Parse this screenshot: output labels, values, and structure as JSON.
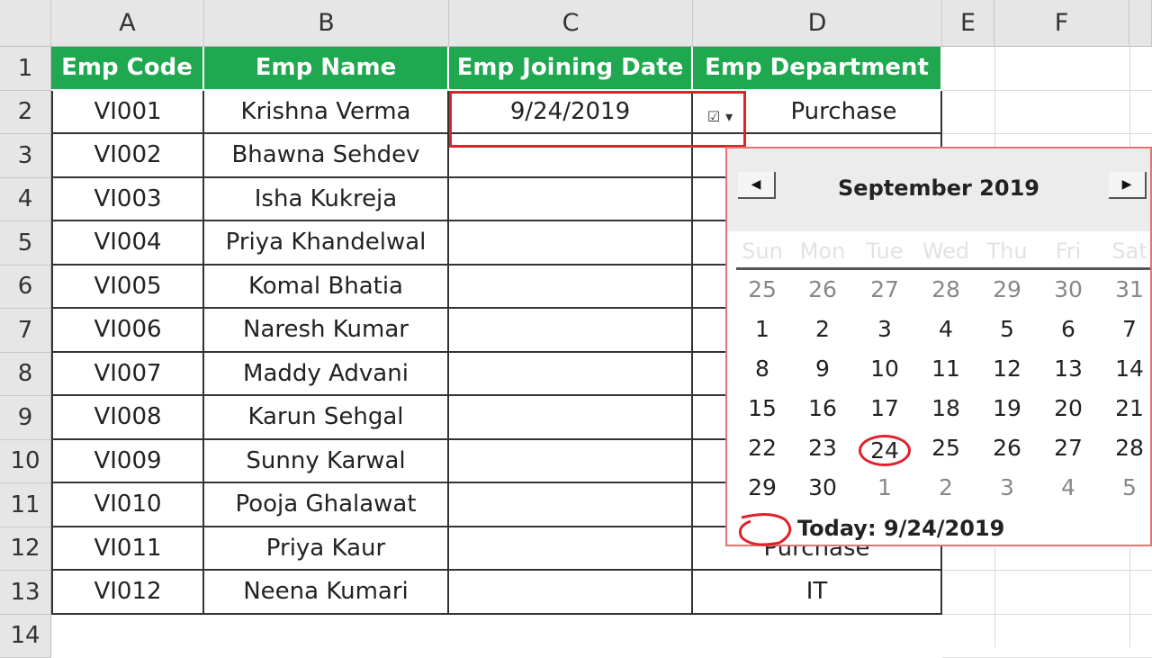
{
  "columns": [
    "A",
    "B",
    "C",
    "D",
    "E",
    "F"
  ],
  "rows": [
    "1",
    "2",
    "3",
    "4",
    "5",
    "6",
    "7",
    "8",
    "9",
    "10",
    "11",
    "12",
    "13",
    "14"
  ],
  "headers": [
    "Emp Code",
    "Emp Name",
    "Emp Joining Date",
    "Emp Department"
  ],
  "header_color": "#1fa84f",
  "employees": [
    {
      "code": "VI001",
      "name": "Krishna Verma",
      "date": "9/24/2019",
      "dept": "Purchase"
    },
    {
      "code": "VI002",
      "name": "Bhawna Sehdev",
      "date": "",
      "dept": ""
    },
    {
      "code": "VI003",
      "name": "Isha Kukreja",
      "date": "",
      "dept": ""
    },
    {
      "code": "VI004",
      "name": "Priya Khandelwal",
      "date": "",
      "dept": ""
    },
    {
      "code": "VI005",
      "name": "Komal Bhatia",
      "date": "",
      "dept": ""
    },
    {
      "code": "VI006",
      "name": "Naresh Kumar",
      "date": "",
      "dept": ""
    },
    {
      "code": "VI007",
      "name": "Maddy Advani",
      "date": "",
      "dept": ""
    },
    {
      "code": "VI008",
      "name": "Karun Sehgal",
      "date": "",
      "dept": ""
    },
    {
      "code": "VI009",
      "name": "Sunny Karwal",
      "date": "",
      "dept": ""
    },
    {
      "code": "VI010",
      "name": "Pooja Ghalawat",
      "date": "",
      "dept": ""
    },
    {
      "code": "VI011",
      "name": "Priya Kaur",
      "date": "",
      "dept": "Purchase"
    },
    {
      "code": "VI012",
      "name": "Neena Kumari",
      "date": "",
      "dept": "IT"
    }
  ],
  "calendar": {
    "month": "September 2019",
    "prev_icon": "triangle-left",
    "next_icon": "triangle-right",
    "day_names": [
      "Sun",
      "Mon",
      "Tue",
      "Wed",
      "Thu",
      "Fri",
      "Sat"
    ],
    "weeks": [
      [
        "25",
        "26",
        "27",
        "28",
        "29",
        "30",
        "31"
      ],
      [
        "1",
        "2",
        "3",
        "4",
        "5",
        "6",
        "7"
      ],
      [
        "8",
        "9",
        "10",
        "11",
        "12",
        "13",
        "14"
      ],
      [
        "15",
        "16",
        "17",
        "18",
        "19",
        "20",
        "21"
      ],
      [
        "22",
        "23",
        "24",
        "25",
        "26",
        "27",
        "28"
      ],
      [
        "29",
        "30",
        "1",
        "2",
        "3",
        "4",
        "5"
      ]
    ],
    "selected": "24",
    "today_label": "Today: 9/24/2019",
    "highlight_color": "#e0202a"
  }
}
